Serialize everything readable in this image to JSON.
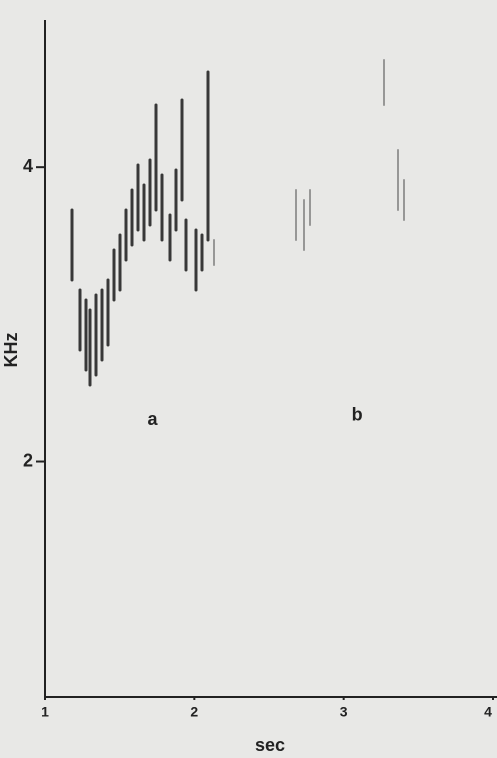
{
  "chart_data": {
    "type": "spectrogram",
    "x_label": "sec",
    "y_label": "KHz",
    "xlim": [
      1,
      4
    ],
    "xticks": [
      1,
      2,
      3,
      4
    ],
    "ylim": [
      0.4,
      5
    ],
    "yticks": [
      2,
      4
    ],
    "annotations": [
      {
        "text": "a",
        "x": 1.72,
        "y": 2.28
      },
      {
        "text": "b",
        "x": 3.09,
        "y": 2.31
      }
    ]
  }
}
